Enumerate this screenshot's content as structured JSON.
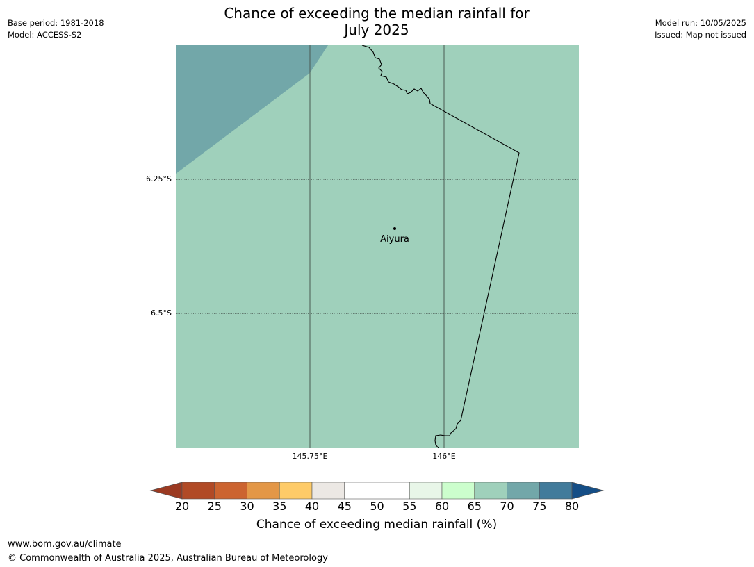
{
  "header": {
    "title_line1": "Chance of exceeding the median rainfall for",
    "title_line2": "July 2025",
    "base_period": "Base period: 1981-2018",
    "model": "Model: ACCESS-S2",
    "model_run": "Model run: 10/05/2025",
    "issued": "Issued: Map not issued"
  },
  "map": {
    "background_color": "#9fd0bb",
    "region_color": "#72a7a9",
    "latitude_labels": [
      "6.25°S",
      "6.5°S"
    ],
    "longitude_labels": [
      "145.75°E",
      "146°E"
    ],
    "places": [
      {
        "name": "Aiyura",
        "marker": "dot-icon"
      }
    ]
  },
  "colorbar": {
    "label": "Chance of exceeding median rainfall (%)",
    "ticks": [
      "20",
      "25",
      "30",
      "35",
      "40",
      "45",
      "50",
      "55",
      "60",
      "65",
      "70",
      "75",
      "80"
    ],
    "under_color": "#9b3a22",
    "over_color": "#154e86",
    "colors": [
      "#b14a26",
      "#cc6430",
      "#e39747",
      "#fecb68",
      "#ece8e4",
      "#ffffff",
      "#ffffff",
      "#e8f6e8",
      "#ccfecd",
      "#9fd0bb",
      "#72a7a9",
      "#427b9b"
    ]
  },
  "footer": {
    "url": "www.bom.gov.au/climate",
    "copyright": "© Commonwealth of Australia 2025, Australian Bureau of Meteorology"
  }
}
